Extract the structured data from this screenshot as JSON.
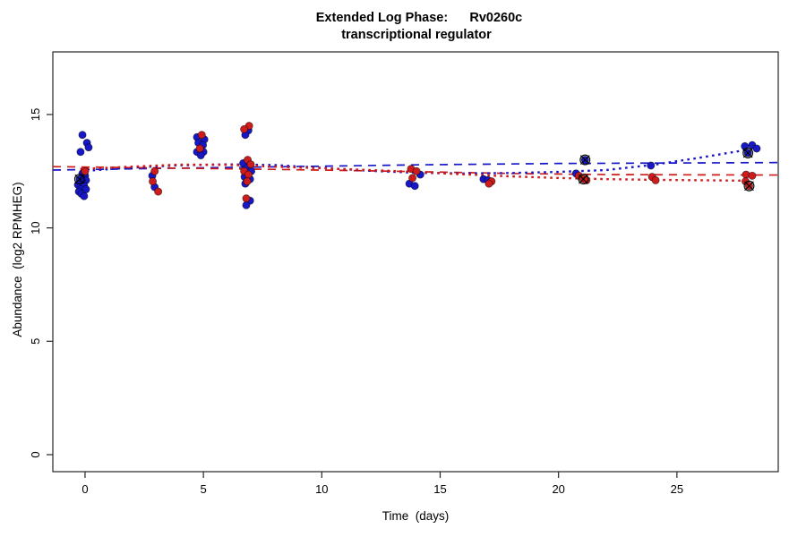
{
  "chart_data": {
    "type": "scatter",
    "title_line1": "Extended Log Phase:      Rv0260c",
    "title_line2": "transcriptional regulator",
    "xlabel": "Time  (days)",
    "ylabel": "Abundance  (log2 RPMHEG)",
    "xlim": [
      -1.36,
      29.28
    ],
    "ylim": [
      -0.75,
      17.76
    ],
    "x_ticks": [
      0,
      5,
      10,
      15,
      20,
      25
    ],
    "y_ticks": [
      0,
      5,
      10,
      15
    ],
    "grid": false,
    "legend": "none",
    "colors": {
      "blue": "#1717C8",
      "red": "#CE1B1B",
      "axis": "#262626",
      "marker": "#000000"
    },
    "series": [
      {
        "name": "blue",
        "color_key": "blue",
        "points": [
          [
            -0.11,
            14.1
          ],
          [
            0.08,
            13.75
          ],
          [
            0.15,
            13.55
          ],
          [
            -0.19,
            13.35
          ],
          [
            -0.11,
            12.4
          ],
          [
            0.0,
            12.3
          ],
          [
            -0.23,
            12.15
          ],
          [
            0.04,
            12.1
          ],
          [
            -0.11,
            12.0
          ],
          [
            -0.3,
            11.9
          ],
          [
            -0.04,
            11.85
          ],
          [
            -0.19,
            11.7
          ],
          [
            0.04,
            11.7
          ],
          [
            -0.26,
            11.6
          ],
          [
            -0.15,
            11.5
          ],
          [
            -0.04,
            11.4
          ],
          [
            2.84,
            12.3
          ],
          [
            2.94,
            11.8
          ],
          [
            4.73,
            14.0
          ],
          [
            5.04,
            13.9
          ],
          [
            4.79,
            13.75
          ],
          [
            4.98,
            13.65
          ],
          [
            4.73,
            13.35
          ],
          [
            5.0,
            13.35
          ],
          [
            4.89,
            13.2
          ],
          [
            6.9,
            14.3
          ],
          [
            6.77,
            14.1
          ],
          [
            6.68,
            12.85
          ],
          [
            6.85,
            12.65
          ],
          [
            7.02,
            12.5
          ],
          [
            6.74,
            12.25
          ],
          [
            6.97,
            12.15
          ],
          [
            6.77,
            11.95
          ],
          [
            6.97,
            11.2
          ],
          [
            6.81,
            11.0
          ],
          [
            14.16,
            12.35
          ],
          [
            13.7,
            11.95
          ],
          [
            13.93,
            11.85
          ],
          [
            16.83,
            12.15
          ],
          [
            17.02,
            12.1
          ],
          [
            21.12,
            13.0
          ],
          [
            20.74,
            12.4
          ],
          [
            23.9,
            12.75
          ],
          [
            27.87,
            13.6
          ],
          [
            28.18,
            13.65
          ],
          [
            28.37,
            13.5
          ],
          [
            28.0,
            13.3
          ]
        ]
      },
      {
        "name": "red",
        "color_key": "red",
        "points": [
          [
            0.0,
            12.5
          ],
          [
            2.94,
            12.5
          ],
          [
            2.86,
            12.05
          ],
          [
            3.09,
            11.6
          ],
          [
            4.93,
            14.1
          ],
          [
            4.85,
            13.5
          ],
          [
            6.93,
            14.5
          ],
          [
            6.72,
            14.35
          ],
          [
            6.87,
            13.0
          ],
          [
            7.0,
            12.8
          ],
          [
            6.72,
            12.5
          ],
          [
            6.9,
            12.35
          ],
          [
            6.85,
            12.05
          ],
          [
            6.81,
            11.3
          ],
          [
            13.77,
            12.6
          ],
          [
            14.0,
            12.5
          ],
          [
            13.83,
            12.2
          ],
          [
            17.17,
            12.05
          ],
          [
            17.06,
            11.95
          ],
          [
            20.86,
            12.3
          ],
          [
            21.05,
            12.15
          ],
          [
            21.18,
            12.1
          ],
          [
            23.95,
            12.25
          ],
          [
            24.1,
            12.1
          ],
          [
            27.92,
            12.35
          ],
          [
            28.18,
            12.3
          ],
          [
            27.9,
            12.05
          ],
          [
            28.05,
            11.85
          ]
        ]
      }
    ],
    "marked_outliers": [
      {
        "series": "blue",
        "points": [
          [
            -0.23,
            12.15
          ],
          [
            21.12,
            13.0
          ],
          [
            28.0,
            13.3
          ]
        ]
      },
      {
        "series": "red",
        "points": [
          [
            21.05,
            12.15
          ],
          [
            28.05,
            11.85
          ]
        ]
      }
    ],
    "trend_lines": [
      {
        "name": "blue-dashed-fit",
        "color_key": "blue",
        "style": "dashed",
        "points": [
          [
            -1.36,
            12.55
          ],
          [
            5,
            12.65
          ],
          [
            10,
            12.72
          ],
          [
            14,
            12.78
          ],
          [
            20,
            12.84
          ],
          [
            29.28,
            12.88
          ]
        ]
      },
      {
        "name": "red-dashed-fit",
        "color_key": "red",
        "style": "dashed",
        "points": [
          [
            -1.36,
            12.7
          ],
          [
            5,
            12.62
          ],
          [
            10,
            12.55
          ],
          [
            14,
            12.48
          ],
          [
            18,
            12.4
          ],
          [
            22,
            12.35
          ],
          [
            29.28,
            12.33
          ]
        ]
      },
      {
        "name": "blue-dotted-fit",
        "color_key": "blue",
        "style": "dotted",
        "points": [
          [
            -0.2,
            12.5
          ],
          [
            2,
            12.66
          ],
          [
            4,
            12.76
          ],
          [
            6,
            12.8
          ],
          [
            8,
            12.77
          ],
          [
            10,
            12.65
          ],
          [
            12,
            12.52
          ],
          [
            14,
            12.43
          ],
          [
            16,
            12.4
          ],
          [
            18,
            12.42
          ],
          [
            20,
            12.47
          ],
          [
            22,
            12.55
          ],
          [
            24,
            12.78
          ],
          [
            26,
            13.1
          ],
          [
            28,
            13.45
          ]
        ]
      },
      {
        "name": "red-dotted-fit",
        "color_key": "red",
        "style": "dotted",
        "points": [
          [
            -0.2,
            12.6
          ],
          [
            2,
            12.7
          ],
          [
            4,
            12.79
          ],
          [
            6,
            12.78
          ],
          [
            8,
            12.7
          ],
          [
            10,
            12.63
          ],
          [
            12,
            12.55
          ],
          [
            14,
            12.47
          ],
          [
            16,
            12.36
          ],
          [
            18,
            12.27
          ],
          [
            20,
            12.2
          ],
          [
            22,
            12.15
          ],
          [
            24,
            12.12
          ],
          [
            26,
            12.1
          ],
          [
            28,
            12.08
          ]
        ]
      }
    ]
  }
}
